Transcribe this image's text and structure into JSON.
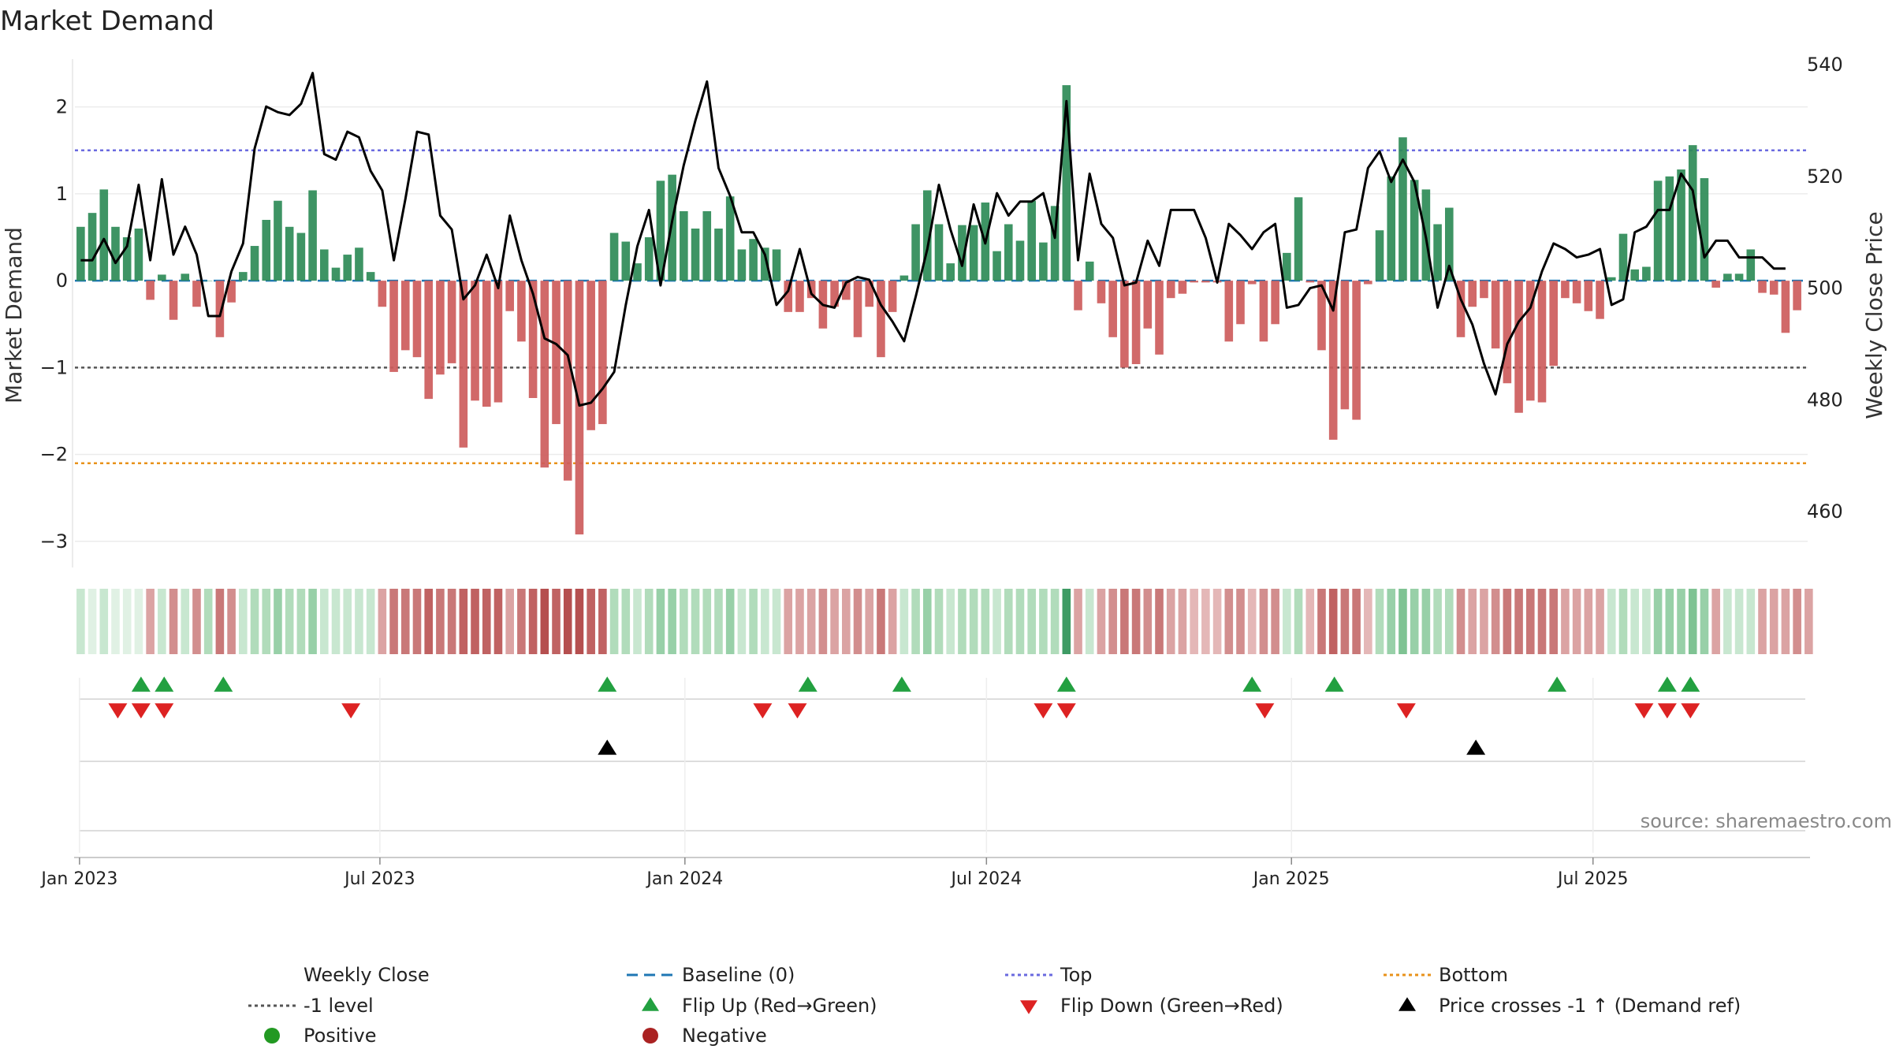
{
  "chart_data": {
    "type": "bar",
    "title": "Market Demand",
    "ylabel_left": "Market Demand",
    "ylabel_right": "Weekly Close Price",
    "ylim_left": [
      -3.3,
      2.55
    ],
    "ylim_right": [
      450,
      541
    ],
    "y_ticks_left": [
      2,
      1,
      0,
      -1,
      -2,
      -3
    ],
    "y_tick_labels_left": [
      "2",
      "1",
      "0",
      "−1",
      "−2",
      "−3"
    ],
    "y_ticks_right": [
      540,
      520,
      500,
      480,
      460
    ],
    "x_axis": {
      "start": "2023-01-01",
      "weeks": 146
    },
    "x_ticks": [
      {
        "label": "Jan 2023",
        "week": 0.4
      },
      {
        "label": "Jul 2023",
        "week": 26.3
      },
      {
        "label": "Jan 2024",
        "week": 52.6
      },
      {
        "label": "Jul 2024",
        "week": 78.6
      },
      {
        "label": "Jan 2025",
        "week": 104.9
      },
      {
        "label": "Jul 2025",
        "week": 130.9
      }
    ],
    "reference_lines": {
      "top": 1.5,
      "minus_one": -1,
      "bottom": -2.1,
      "baseline": 0
    },
    "demand": [
      0.62,
      0.78,
      1.05,
      0.62,
      0.5,
      0.6,
      -0.22,
      0.07,
      -0.45,
      0.08,
      -0.3,
      0,
      -0.65,
      -0.25,
      0.1,
      0.4,
      0.7,
      0.92,
      0.62,
      0.55,
      1.04,
      0.36,
      0.15,
      0.3,
      0.38,
      0.1,
      -0.3,
      -1.05,
      -0.8,
      -0.88,
      -1.36,
      -1.08,
      -0.95,
      -1.92,
      -1.38,
      -1.45,
      -1.4,
      -0.35,
      -0.7,
      -1.35,
      -2.15,
      -1.65,
      -2.3,
      -2.92,
      -1.72,
      -1.65,
      0.55,
      0.45,
      0.2,
      0.5,
      1.15,
      1.22,
      0.8,
      0.6,
      0.8,
      0.6,
      0.97,
      0.36,
      0.48,
      0.38,
      0.36,
      -0.36,
      -0.36,
      -0.2,
      -0.55,
      -0.3,
      -0.22,
      -0.65,
      -0.3,
      -0.88,
      -0.36,
      0.06,
      0.65,
      1.04,
      0.65,
      0.2,
      0.64,
      0.64,
      0.9,
      0.34,
      0.65,
      0.46,
      0.92,
      0.44,
      0.86,
      2.25,
      -0.34,
      0.22,
      -0.26,
      -0.65,
      -1.0,
      -0.96,
      -0.55,
      -0.85,
      -0.2,
      -0.15,
      -0.02,
      -0.02,
      -0.02,
      -0.7,
      -0.5,
      -0.04,
      -0.7,
      -0.5,
      0.32,
      0.96,
      -0.02,
      -0.8,
      -1.83,
      -1.48,
      -1.6,
      -0.04,
      0.58,
      1.2,
      1.65,
      1.16,
      1.05,
      0.65,
      0.84,
      -0.65,
      -0.3,
      -0.2,
      -0.78,
      -1.18,
      -1.52,
      -1.38,
      -1.4,
      -0.98,
      -0.2,
      -0.26,
      -0.35,
      -0.44,
      0.04,
      0.54,
      0.13,
      0.16,
      1.15,
      1.2,
      1.28,
      1.56,
      1.18,
      -0.08,
      0.08,
      0.08,
      0.36,
      -0.14,
      -0.16,
      -0.6,
      -0.34
    ],
    "close": [
      505,
      505,
      508.8,
      504.5,
      507.5,
      518.5,
      505,
      519.5,
      506,
      511,
      506,
      495,
      495,
      503,
      508,
      525,
      532.5,
      531.5,
      531,
      533,
      538.5,
      524,
      523,
      528,
      527,
      521,
      517.5,
      505,
      516,
      528,
      527.5,
      513,
      510.5,
      498,
      500.5,
      506,
      500,
      513,
      505,
      499,
      491,
      490,
      488,
      479,
      479.5,
      482,
      485,
      497,
      507.5,
      514,
      500.5,
      512,
      522,
      530,
      537,
      521.5,
      516.5,
      510,
      510,
      506,
      497,
      499.5,
      507,
      499,
      497,
      496.5,
      501,
      502,
      501.5,
      497,
      494,
      490.5,
      498.5,
      507,
      518.5,
      510.5,
      504,
      515,
      508,
      517,
      513,
      515.5,
      515.5,
      517,
      509,
      533.5,
      505,
      520.5,
      511.5,
      509,
      500.5,
      501,
      508.5,
      504,
      514,
      514,
      514,
      509,
      501,
      511.5,
      509.5,
      507,
      510,
      511.5,
      496.5,
      497,
      500,
      500.5,
      496,
      510,
      510.5,
      521.5,
      524.5,
      519,
      523,
      519,
      509,
      496.5,
      504,
      498,
      493.5,
      486.5,
      481,
      490,
      494,
      496.5,
      503,
      508,
      507,
      505.5,
      506,
      507,
      497,
      498,
      510,
      511,
      514,
      514,
      520.5,
      517.5,
      505.5,
      508.5,
      508.5,
      505.5,
      505.5,
      505.5,
      503.5,
      503.5
    ],
    "strip_levels": [
      4,
      3,
      4,
      3,
      3,
      3,
      6,
      4,
      7,
      4,
      7,
      5,
      8,
      7,
      4,
      5,
      5,
      6,
      5,
      5,
      6,
      4,
      4,
      4,
      4,
      4,
      6,
      8,
      8,
      8,
      9,
      8,
      8,
      9,
      9,
      9,
      9,
      6,
      8,
      9,
      10,
      9,
      10,
      11,
      9,
      9,
      5,
      5,
      4,
      5,
      6,
      6,
      5,
      5,
      5,
      5,
      6,
      4,
      5,
      4,
      4,
      6,
      6,
      6,
      7,
      6,
      6,
      7,
      6,
      8,
      6,
      4,
      5,
      6,
      5,
      4,
      5,
      5,
      5,
      4,
      5,
      5,
      5,
      5,
      5,
      9,
      6,
      4,
      6,
      7,
      8,
      8,
      7,
      8,
      6,
      6,
      5,
      5,
      5,
      7,
      7,
      5,
      7,
      7,
      4,
      5,
      5,
      8,
      9,
      8,
      8,
      5,
      5,
      6,
      7,
      6,
      6,
      5,
      5,
      7,
      6,
      6,
      7,
      8,
      8,
      8,
      8,
      8,
      6,
      6,
      6,
      6,
      4,
      5,
      4,
      4,
      6,
      6,
      6,
      7,
      6,
      6,
      4,
      4,
      4,
      6,
      6,
      6,
      7,
      6
    ],
    "flip_up_weeks": [
      5.7,
      7.7,
      12.8,
      45.9,
      63.2,
      71.3,
      85.5,
      101.5,
      108.6,
      127.8,
      137.3,
      139.3
    ],
    "flip_down_weeks": [
      3.7,
      5.7,
      7.7,
      23.8,
      59.3,
      62.3,
      83.5,
      85.5,
      102.6,
      114.8,
      135.3,
      137.3,
      139.3
    ],
    "price_cross_weeks": [
      45.9,
      120.8
    ],
    "colors": {
      "positive": "#2e8b57",
      "negative": "#cd5c5c",
      "close_line": "#000000",
      "baseline": "#1f77b4",
      "top": "#6a6adf",
      "bottom": "#e8921a",
      "minus_one": "#555555",
      "flip_up": "#22a040",
      "flip_down": "#dd2222",
      "price_cross": "#000000",
      "legend_positive": "#229922",
      "legend_negative": "#aa2222"
    },
    "legend": [
      {
        "key": "close",
        "label": "Weekly Close",
        "symbol": "solid-line"
      },
      {
        "key": "baseline",
        "label": "Baseline (0)",
        "symbol": "dashed-line"
      },
      {
        "key": "top",
        "label": "Top",
        "symbol": "dotted-line"
      },
      {
        "key": "bottom",
        "label": "Bottom",
        "symbol": "dotted-line"
      },
      {
        "key": "minus_one",
        "label": "-1 level",
        "symbol": "dotted-line"
      },
      {
        "key": "flip_up",
        "label": "Flip Up (Red→Green)",
        "symbol": "triangle-up"
      },
      {
        "key": "flip_down",
        "label": "Flip Down (Green→Red)",
        "symbol": "triangle-down"
      },
      {
        "key": "price_cross",
        "label": "Price crosses -1 ↑ (Demand ref)",
        "symbol": "triangle-up"
      },
      {
        "key": "positive",
        "label": "Positive",
        "symbol": "circle"
      },
      {
        "key": "negative",
        "label": "Negative",
        "symbol": "circle"
      }
    ],
    "source": "source: sharemaestro.com"
  }
}
